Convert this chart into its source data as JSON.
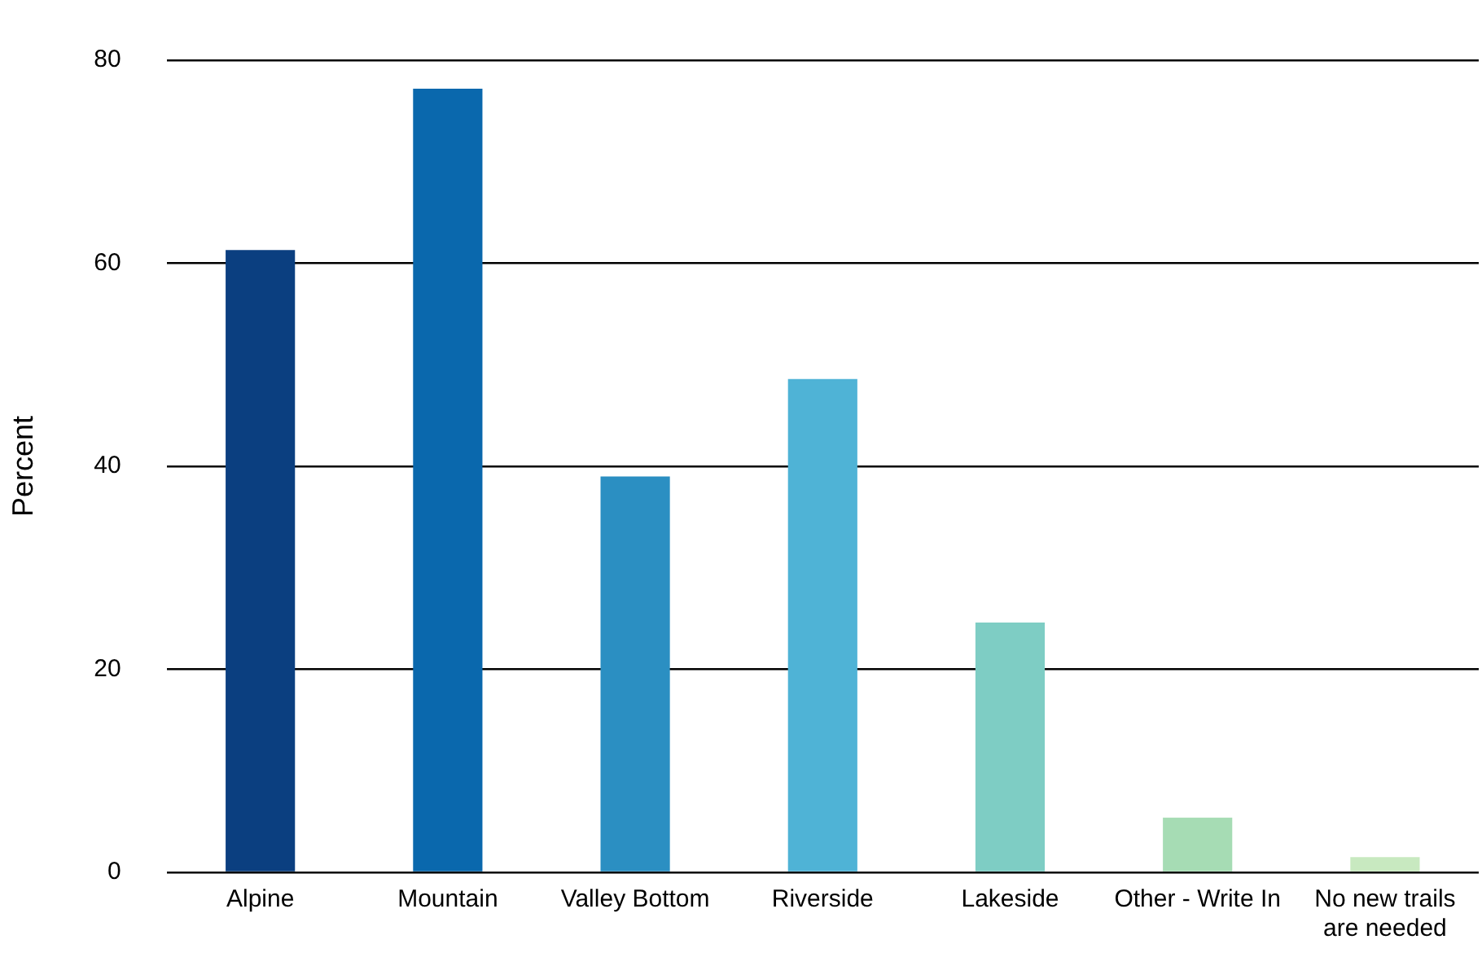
{
  "chart_data": {
    "type": "bar",
    "ylabel": "Percent",
    "categories": [
      "Alpine",
      "Mountain",
      "Valley Bottom",
      "Riverside",
      "Lakeside",
      "Other - Write In",
      "No new trails are needed"
    ],
    "values": [
      61.3,
      77.2,
      39.0,
      48.6,
      24.6,
      5.4,
      1.5
    ],
    "colors": [
      "#0b3f80",
      "#0a68ad",
      "#2b8fc2",
      "#4fb3d6",
      "#7ecdc4",
      "#a6dcb4",
      "#c8e9c0"
    ],
    "ylim": [
      0,
      80
    ],
    "yticks": [
      0,
      20,
      40,
      60,
      80
    ],
    "grid": "y",
    "legend": false
  }
}
